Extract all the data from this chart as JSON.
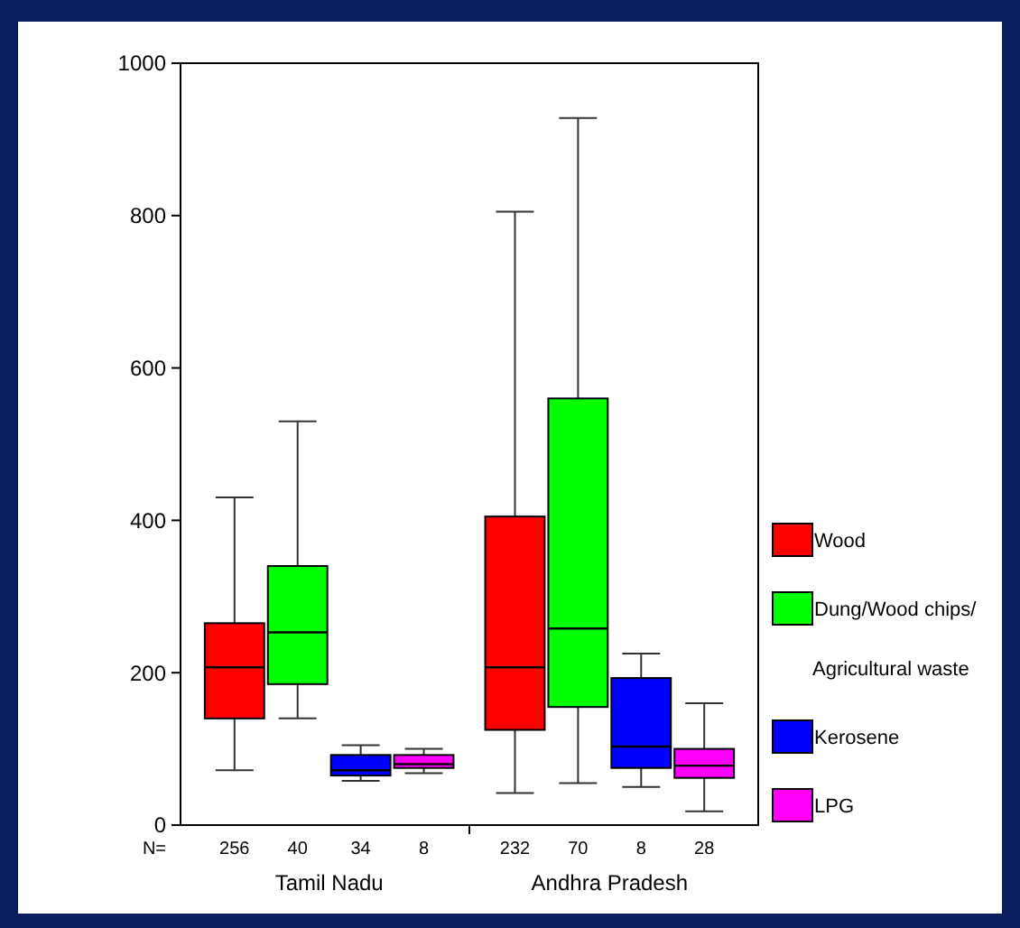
{
  "chart_data": {
    "type": "box",
    "categories": [
      "Tamil Nadu",
      "Andhra Pradesh"
    ],
    "ylim": [
      0,
      1000
    ],
    "yticks": [
      0,
      200,
      400,
      600,
      800,
      1000
    ],
    "grid": false,
    "legend": "right",
    "series": [
      {
        "name": "Wood",
        "color": "#ff0000",
        "boxes": [
          {
            "low": 72,
            "q1": 140,
            "median": 207,
            "q3": 265,
            "high": 430
          },
          {
            "low": 42,
            "q1": 125,
            "median": 207,
            "q3": 405,
            "high": 805
          }
        ]
      },
      {
        "name": "Dung/Wood chips/ Agricultural waste",
        "color": "#00ff00",
        "boxes": [
          {
            "low": 140,
            "q1": 185,
            "median": 253,
            "q3": 340,
            "high": 530
          },
          {
            "low": 55,
            "q1": 155,
            "median": 258,
            "q3": 560,
            "high": 928
          }
        ]
      },
      {
        "name": "Kerosene",
        "color": "#0000ff",
        "boxes": [
          {
            "low": 58,
            "q1": 65,
            "median": 72,
            "q3": 92,
            "high": 105
          },
          {
            "low": 50,
            "q1": 75,
            "median": 103,
            "q3": 193,
            "high": 225
          }
        ]
      },
      {
        "name": "LPG",
        "color": "#ff00ff",
        "boxes": [
          {
            "low": 68,
            "q1": 75,
            "median": 80,
            "q3": 92,
            "high": 100
          },
          {
            "low": 18,
            "q1": 62,
            "median": 78,
            "q3": 100,
            "high": 160
          }
        ]
      }
    ],
    "annotations": [
      "N=",
      "256",
      "40",
      "34",
      "8",
      "232",
      "70",
      "8",
      "28"
    ]
  }
}
